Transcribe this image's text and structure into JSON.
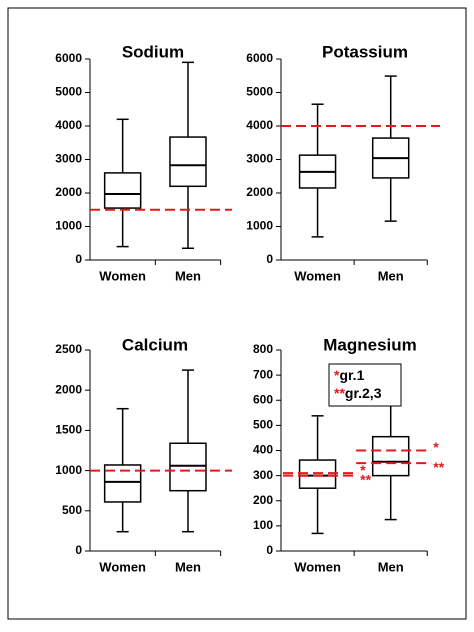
{
  "chart_data": [
    {
      "type": "box",
      "title": "Sodium",
      "categories": [
        "Women",
        "Men"
      ],
      "boxes": [
        {
          "min": 400,
          "q1": 1550,
          "median": 1970,
          "q3": 2600,
          "max": 4200
        },
        {
          "min": 350,
          "q1": 2200,
          "median": 2830,
          "q3": 3670,
          "max": 5900
        }
      ],
      "ylim": [
        0,
        6000
      ],
      "yticks": [
        0,
        1000,
        2000,
        3000,
        4000,
        5000,
        6000
      ],
      "color": "#000000",
      "ref_color": "#e31a1c",
      "ref_lines": [
        {
          "value": 1500
        }
      ]
    },
    {
      "type": "box",
      "title": "Potassium",
      "categories": [
        "Women",
        "Men"
      ],
      "boxes": [
        {
          "min": 690,
          "q1": 2150,
          "median": 2630,
          "q3": 3130,
          "max": 4650
        },
        {
          "min": 1160,
          "q1": 2450,
          "median": 3040,
          "q3": 3640,
          "max": 5490
        }
      ],
      "ylim": [
        0,
        6000
      ],
      "yticks": [
        0,
        1000,
        2000,
        3000,
        4000,
        5000,
        6000
      ],
      "color": "#000000",
      "ref_color": "#e31a1c",
      "ref_lines": [
        {
          "value": 4000
        }
      ]
    },
    {
      "type": "box",
      "title": "Calcium",
      "categories": [
        "Women",
        "Men"
      ],
      "boxes": [
        {
          "min": 240,
          "q1": 610,
          "median": 860,
          "q3": 1070,
          "max": 1770
        },
        {
          "min": 240,
          "q1": 750,
          "median": 1060,
          "q3": 1340,
          "max": 2250
        }
      ],
      "ylim": [
        0,
        2500
      ],
      "yticks": [
        0,
        500,
        1000,
        1500,
        2000,
        2500
      ],
      "color": "#000000",
      "ref_color": "#e31a1c",
      "ref_lines": [
        {
          "value": 1000
        }
      ]
    },
    {
      "type": "box",
      "title": "Magnesium",
      "categories": [
        "Women",
        "Men"
      ],
      "boxes": [
        {
          "min": 70,
          "q1": 250,
          "median": 300,
          "q3": 362,
          "max": 538
        },
        {
          "min": 125,
          "q1": 300,
          "median": 355,
          "q3": 455,
          "max": 700
        }
      ],
      "ylim": [
        0,
        800
      ],
      "yticks": [
        0,
        100,
        200,
        300,
        400,
        500,
        600,
        700,
        800
      ],
      "color": "#000000",
      "ref_color": "#e31a1c",
      "ref_lines": [
        {
          "name": "gr.1",
          "label": "*",
          "values": [
            310,
            400
          ]
        },
        {
          "name": "gr.2,3",
          "label": "**",
          "values": [
            300,
            350
          ]
        }
      ]
    }
  ]
}
